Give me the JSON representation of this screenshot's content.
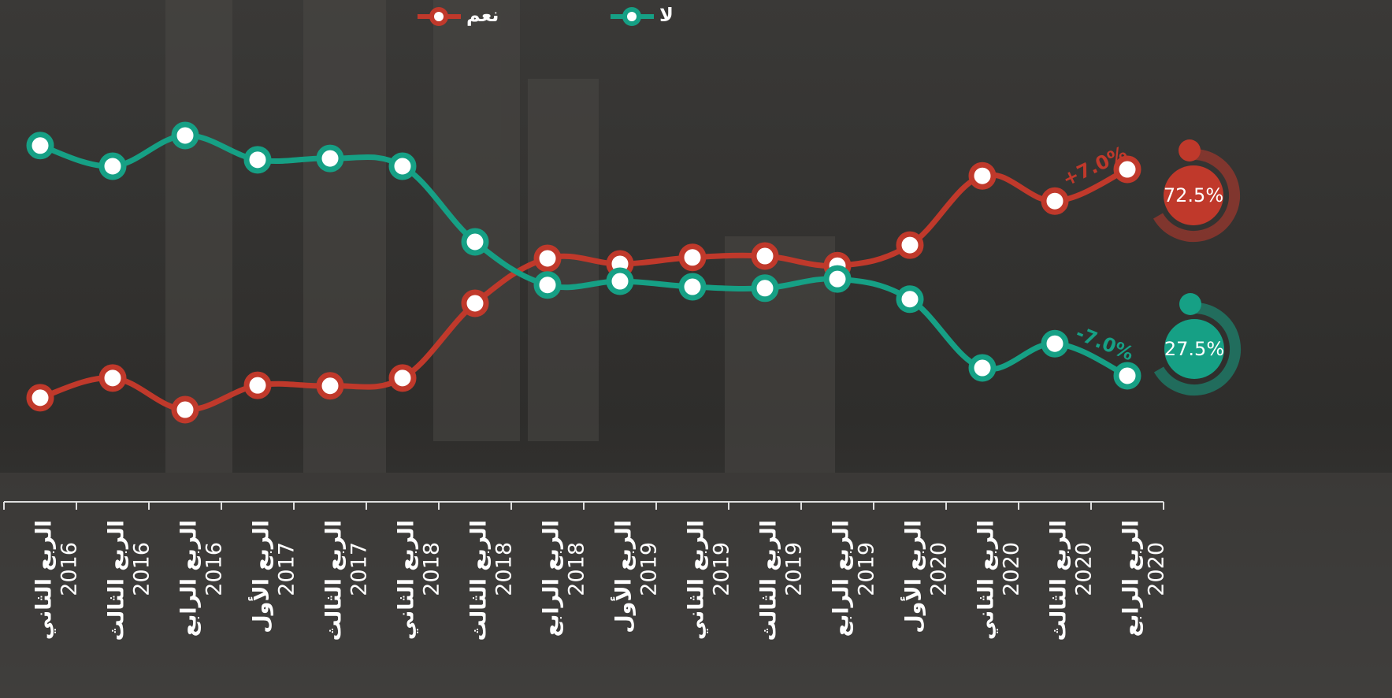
{
  "chart_data": {
    "type": "line",
    "categories": [
      [
        "الربع الثاني",
        "2016"
      ],
      [
        "الربع الثالث",
        "2016"
      ],
      [
        "الربع الرابع",
        "2016"
      ],
      [
        "الربع الأول",
        "2017"
      ],
      [
        "الربع الثالث",
        "2017"
      ],
      [
        "الربع الثاني",
        "2018"
      ],
      [
        "الربع الثالث",
        "2018"
      ],
      [
        "الربع الرابع",
        "2018"
      ],
      [
        "الربع الأول",
        "2019"
      ],
      [
        "الربع الثاني",
        "2019"
      ],
      [
        "الربع الثالث",
        "2019"
      ],
      [
        "الربع الرابع",
        "2019"
      ],
      [
        "الربع الأول",
        "2020"
      ],
      [
        "الربع الثاني",
        "2020"
      ],
      [
        "الربع الثالث",
        "2020"
      ],
      [
        "الربع الرابع",
        "2020"
      ]
    ],
    "series": [
      {
        "name": "نعم",
        "color": "#c0392b",
        "values": [
          22.7,
          27.0,
          20.1,
          25.4,
          25.3,
          27.0,
          43.3,
          53.1,
          51.9,
          53.3,
          53.6,
          51.5,
          56.0,
          71.1,
          65.6,
          72.5
        ],
        "end_label": "72.5%",
        "change": "+7.0%"
      },
      {
        "name": "لا",
        "color": "#16a085",
        "values": [
          77.7,
          73.2,
          79.9,
          74.6,
          74.9,
          73.2,
          56.7,
          47.3,
          48.1,
          46.9,
          46.6,
          48.6,
          44.2,
          29.2,
          34.5,
          27.5
        ],
        "end_label": "27.5%",
        "change": "-7.0%"
      }
    ],
    "ylim": [
      0,
      100
    ]
  }
}
